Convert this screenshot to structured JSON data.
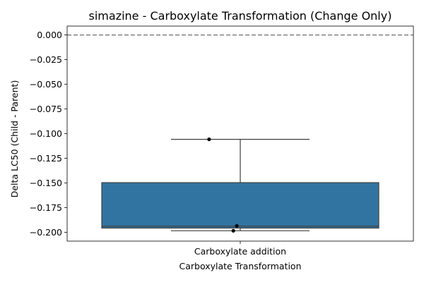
{
  "chart_data": {
    "type": "box",
    "title": "simazine - Carboxylate Transformation (Change Only)",
    "xlabel": "Carboxylate Transformation",
    "ylabel": "Delta LC50 (Child - Parent)",
    "categories": [
      "Carboxylate addition"
    ],
    "ylim": [
      -0.209,
      0.009
    ],
    "yticks": [
      0.0,
      -0.025,
      -0.05,
      -0.075,
      -0.1,
      -0.125,
      -0.15,
      -0.175,
      -0.2
    ],
    "ytick_labels": [
      "0.000",
      "−0.025",
      "−0.050",
      "−0.075",
      "−0.100",
      "−0.125",
      "−0.150",
      "−0.175",
      "−0.200"
    ],
    "reference_line": {
      "y": 0.0,
      "style": "dashed",
      "color": "#808080"
    },
    "boxes": [
      {
        "category": "Carboxylate addition",
        "whisker_low": -0.1985,
        "q1": -0.1958,
        "median": -0.1939,
        "q3": -0.1497,
        "whisker_high": -0.1058,
        "color": "#3274a1"
      }
    ],
    "points": [
      {
        "category": "Carboxylate addition",
        "jitter": -0.09,
        "y": -0.1058
      },
      {
        "category": "Carboxylate addition",
        "jitter": -0.02,
        "y": -0.1985
      },
      {
        "category": "Carboxylate addition",
        "jitter": -0.01,
        "y": -0.1935
      }
    ],
    "grid": false,
    "legend": "none"
  }
}
